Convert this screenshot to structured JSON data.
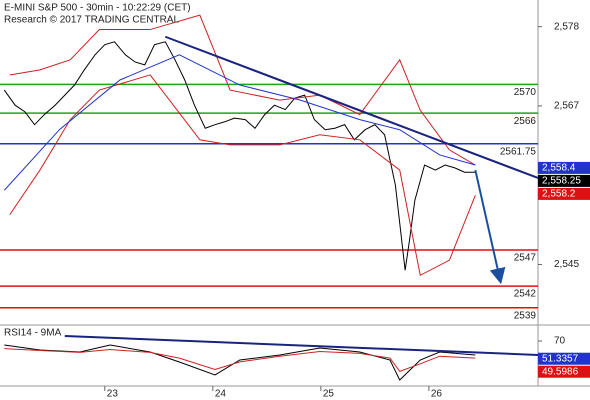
{
  "chart_data": [
    {
      "type": "line",
      "title": "E-MINI S&P 500 - 30min - 10:22:29 (CET)",
      "subtitle": "Research © 2017 TRADING CENTRAL",
      "xlim": [
        22.03,
        27.01
      ],
      "ylim": [
        2536.6,
        2581.7
      ],
      "yticks": [
        {
          "value": 2578,
          "label": "2,578"
        },
        {
          "value": 2567,
          "label": "2,567"
        },
        {
          "value": 2545,
          "label": "2,545"
        }
      ],
      "series": [
        {
          "color": "#000000",
          "x": [
            22.07,
            22.17,
            22.26,
            22.35,
            22.44,
            22.54,
            22.63,
            22.72,
            22.81,
            22.91,
            23,
            23.09,
            23.19,
            23.28,
            23.37,
            23.46,
            23.56,
            23.65,
            23.74,
            23.83,
            23.93,
            24.02,
            24.11,
            24.2,
            24.3,
            24.39,
            24.48,
            24.57,
            24.67,
            24.76,
            24.85,
            24.94,
            25.04,
            25.13,
            25.22,
            25.31,
            25.41,
            25.5,
            25.59,
            25.69,
            25.78,
            25.82,
            25.87,
            25.96,
            26.06,
            26.15,
            26.24,
            26.33,
            26.43
          ],
          "values": [
            2569.2,
            2567.1,
            2566.2,
            2564.4,
            2565.8,
            2567.1,
            2568.5,
            2569.9,
            2572,
            2574.1,
            2575.5,
            2575.9,
            2574.1,
            2573.1,
            2572.7,
            2575.5,
            2575.9,
            2573.4,
            2570.6,
            2567.1,
            2563.9,
            2564.4,
            2564.8,
            2565.3,
            2565.1,
            2563.9,
            2565.8,
            2567.1,
            2566.5,
            2568.1,
            2568.5,
            2565.1,
            2563.7,
            2563.9,
            2564.4,
            2562.3,
            2563.7,
            2564.4,
            2563,
            2556,
            2544.2,
            2548.3,
            2553.9,
            2558.8,
            2558.1,
            2558.8,
            2558.4,
            2557.8,
            2557.8
          ]
        },
        {
          "color": "#cc2222",
          "x": [
            22.12,
            22.4,
            22.68,
            22.95,
            23.42,
            23.88,
            24.16,
            24.62,
            24.99,
            25.36,
            25.73,
            25.92,
            26.19,
            26.43
          ],
          "values": [
            2571.3,
            2572,
            2573.4,
            2577.6,
            2577.6,
            2579.6,
            2569.2,
            2567.8,
            2568.5,
            2565.8,
            2573.4,
            2566.4,
            2560.9,
            2558.8
          ]
        },
        {
          "color": "#cc2222",
          "x": [
            22.12,
            22.4,
            22.68,
            22.95,
            23.42,
            23.88,
            24.16,
            24.62,
            24.99,
            25.36,
            25.73,
            25.92,
            26.19,
            26.43
          ],
          "values": [
            2551.9,
            2558.1,
            2565.1,
            2569.2,
            2571.3,
            2562.3,
            2561.6,
            2561.6,
            2563,
            2562.3,
            2558.1,
            2543.5,
            2545.6,
            2554.6
          ]
        },
        {
          "color": "#2233cc",
          "x": [
            22.07,
            22.58,
            23.14,
            23.69,
            24.25,
            24.81,
            25.36,
            25.73,
            26.1,
            26.43
          ],
          "values": [
            2555.3,
            2563.7,
            2570.6,
            2574.1,
            2569.9,
            2567.8,
            2565.1,
            2563.7,
            2560.2,
            2558.8
          ]
        }
      ],
      "levels": [
        {
          "value": 2570,
          "color": "#22a022"
        },
        {
          "value": 2566,
          "color": "#22a022"
        },
        {
          "value": 2561.75,
          "color": "#2233cc"
        },
        {
          "value": 2547,
          "color": "#dd1111"
        },
        {
          "value": 2542,
          "color": "#dd1111"
        },
        {
          "value": 2539,
          "color": "#dd1111"
        }
      ],
      "trendlines": [
        {
          "x": [
            23.56,
            27.01
          ],
          "y": [
            2576.6,
            2557
          ],
          "color": "#1a237e"
        },
        {
          "x": [
            26.43,
            26.66
          ],
          "y": [
            2558.1,
            2542.8
          ],
          "color": "#1a4fa0",
          "arrow": true
        }
      ],
      "price_labels": [
        {
          "value": 2558.4,
          "label": "2,558.4",
          "color": "#2233cc"
        },
        {
          "value": 2558.25,
          "label": "2,558.25",
          "color": "#000000"
        },
        {
          "value": 2558.2,
          "label": "2,558.2",
          "color": "#dd1111"
        }
      ]
    },
    {
      "type": "line",
      "title": "RSI14 - 9MA",
      "xlim": [
        22.03,
        27.01
      ],
      "ylim": [
        22.6,
        83.7
      ],
      "xticks": [
        {
          "value": 23,
          "label": "23"
        },
        {
          "value": 24,
          "label": "24"
        },
        {
          "value": 25,
          "label": "25"
        },
        {
          "value": 26,
          "label": "26"
        }
      ],
      "yticks": [
        70
      ],
      "series": [
        {
          "color": "#000000",
          "x": [
            22.07,
            22.4,
            22.77,
            23.05,
            23.42,
            23.69,
            24.02,
            24.25,
            24.62,
            24.99,
            25.36,
            25.64,
            25.73,
            25.92,
            26.1,
            26.43
          ],
          "values": [
            65.8,
            60.5,
            58.4,
            65.8,
            58.4,
            47.9,
            34.2,
            50,
            55.3,
            62.6,
            58.4,
            50,
            28.9,
            50,
            58.4,
            55.3
          ]
        },
        {
          "color": "#cc2222",
          "x": [
            22.07,
            22.4,
            22.77,
            23.05,
            23.42,
            23.69,
            24.02,
            24.25,
            24.62,
            24.99,
            25.36,
            25.64,
            25.73,
            25.92,
            26.1,
            26.43
          ],
          "values": [
            62,
            60,
            58,
            61,
            58,
            52,
            40,
            48,
            54,
            59,
            57,
            52,
            38,
            46,
            54,
            52
          ]
        }
      ],
      "trendlines": [
        {
          "x": [
            22.63,
            27.01
          ],
          "y": [
            75.3,
            55.3
          ],
          "color": "#1a237e"
        }
      ],
      "price_labels": [
        {
          "value": 51.3357,
          "color": "#2233cc"
        },
        {
          "value": 49.5986,
          "color": "#dd1111"
        }
      ]
    }
  ]
}
